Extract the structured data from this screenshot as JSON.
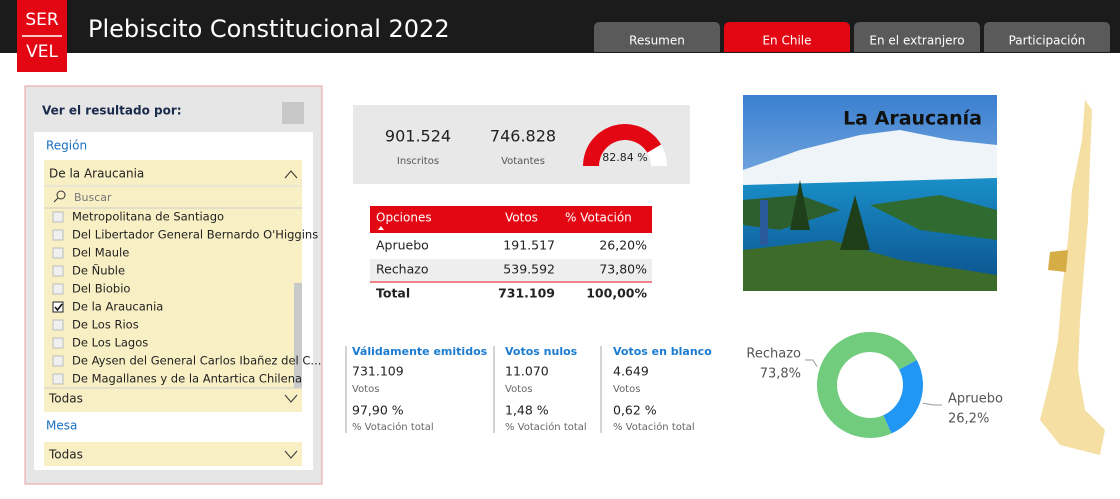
{
  "header": {
    "logo": [
      "SER",
      "VEL"
    ],
    "title": "Plebiscito Constitucional 2022",
    "tabs": [
      "Resumen",
      "En Chile",
      "En el extranjero",
      "Participación"
    ],
    "active_tab": 1
  },
  "filter": {
    "heading": "Ver el resultado por:",
    "region_label": "Región",
    "region_selected": "De la Araucania",
    "search_placeholder": "Buscar",
    "options": [
      {
        "label": "Metropolitana de Santiago",
        "checked": false
      },
      {
        "label": "Del Libertador General Bernardo O'Higgins",
        "checked": false
      },
      {
        "label": "Del Maule",
        "checked": false
      },
      {
        "label": "De Ñuble",
        "checked": false
      },
      {
        "label": "Del Biobio",
        "checked": false
      },
      {
        "label": "De la Araucania",
        "checked": true
      },
      {
        "label": "De Los Rios",
        "checked": false
      },
      {
        "label": "De Los Lagos",
        "checked": false
      },
      {
        "label": "De Aysen del General Carlos Ibañez del C...",
        "checked": false
      },
      {
        "label": "De Magallanes y de la Antartica Chilena",
        "checked": false
      }
    ],
    "all_label": "Todas",
    "mesa_label": "Mesa",
    "mesa_selected": "Todas"
  },
  "stats": {
    "inscritos": {
      "value": "901.524",
      "label": "Inscritos"
    },
    "votantes": {
      "value": "746.828",
      "label": "Votantes"
    },
    "gauge": {
      "value": 82.84,
      "value_label": "82.84 %"
    }
  },
  "table": {
    "headers": [
      "Opciones",
      "Votos",
      "% Votación"
    ],
    "rows": [
      [
        "Apruebo",
        "191.517",
        "26,20%"
      ],
      [
        "Rechazo",
        "539.592",
        "73,80%"
      ]
    ],
    "total": [
      "Total",
      "731.109",
      "100,00%"
    ]
  },
  "summary": [
    {
      "title": "Válidamente emitidos",
      "value": "731.109",
      "unit": "Votos",
      "percent": "97,90 %",
      "percent_label": "% Votación total"
    },
    {
      "title": "Votos nulos",
      "value": "11.070",
      "unit": "Votos",
      "percent": "1,48 %",
      "percent_label": "% Votación total"
    },
    {
      "title": "Votos en blanco",
      "value": "4.649",
      "unit": "Votos",
      "percent": "0,62 %",
      "percent_label": "% Votación total"
    }
  ],
  "image": {
    "caption": "La Araucanía"
  },
  "chart_data": {
    "type": "pie",
    "categories": [
      "Rechazo",
      "Apruebo"
    ],
    "values": [
      73.8,
      26.2
    ],
    "value_labels": [
      "73,8%",
      "26,2%"
    ],
    "colors": [
      "#72cc7e",
      "#2196f3"
    ]
  }
}
